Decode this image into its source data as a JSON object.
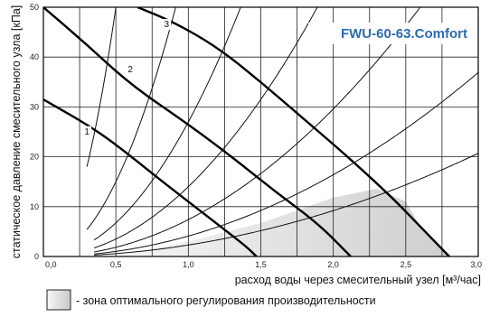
{
  "chart_data": {
    "type": "line",
    "title": "FWU-60-63.Comfort",
    "xlabel": "расход воды через смесительный узел [м³/час]",
    "ylabel": "статическое давление смесительного узла [кПа]",
    "xlim": [
      0,
      3.0
    ],
    "ylim": [
      0,
      50
    ],
    "x_ticks": [
      "0,0",
      "0,5",
      "1,0",
      "1,5",
      "2,0",
      "2,5",
      "3,0"
    ],
    "y_ticks": [
      "0",
      "10",
      "20",
      "30",
      "40",
      "50"
    ],
    "grid": true,
    "pump_curves": [
      {
        "label": "1",
        "points": [
          [
            0.0,
            31.5
          ],
          [
            0.3,
            26.5
          ],
          [
            0.5,
            22.5
          ],
          [
            0.8,
            15.5
          ],
          [
            1.0,
            11.0
          ],
          [
            1.2,
            6.5
          ],
          [
            1.4,
            2.0
          ],
          [
            1.47,
            0.0
          ]
        ]
      },
      {
        "label": "2",
        "points": [
          [
            0.0,
            50.0
          ],
          [
            0.3,
            42.5
          ],
          [
            0.6,
            34.5
          ],
          [
            1.0,
            26.5
          ],
          [
            1.3,
            20.0
          ],
          [
            1.6,
            13.0
          ],
          [
            1.9,
            6.5
          ],
          [
            2.12,
            0.0
          ]
        ]
      },
      {
        "label": "3",
        "points": [
          [
            0.65,
            50.0
          ],
          [
            0.9,
            47.0
          ],
          [
            1.2,
            42.0
          ],
          [
            1.5,
            35.0
          ],
          [
            1.8,
            27.5
          ],
          [
            2.1,
            20.0
          ],
          [
            2.4,
            12.0
          ],
          [
            2.6,
            6.0
          ],
          [
            2.8,
            0.0
          ]
        ]
      }
    ],
    "system_curves_k": [
      200,
      60,
      27,
      14,
      7.4,
      4.1,
      2.3
    ],
    "optimal_zone": [
      [
        0.47,
        0.0
      ],
      [
        1.0,
        3.0
      ],
      [
        1.5,
        6.7
      ],
      [
        2.0,
        11.8
      ],
      [
        2.3,
        13.6
      ],
      [
        2.5,
        11.0
      ],
      [
        2.6,
        6.0
      ],
      [
        2.8,
        0.0
      ]
    ],
    "legend": {
      "text": "- зона оптимального регулирования производительности"
    }
  },
  "colors": {
    "zone_fill": "#d4d4d4",
    "zone_light": "#ebebeb",
    "title": "#2b6cb0",
    "grid": "#222222"
  }
}
